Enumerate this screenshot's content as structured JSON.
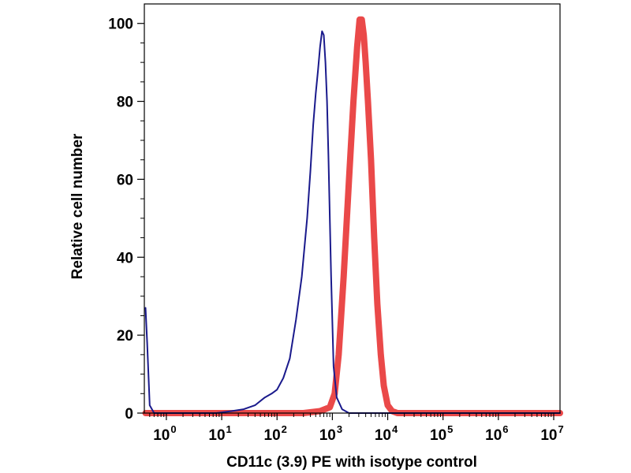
{
  "chart_data": {
    "type": "line",
    "title": "",
    "xlabel": "CD11c (3.9) PE with isotype control",
    "ylabel": "Relative cell number",
    "x_scale": "log",
    "xlim": [
      0.4,
      13000000
    ],
    "ylim": [
      0,
      105
    ],
    "x_ticks": [
      {
        "base": "10",
        "exp": "0",
        "value": 1
      },
      {
        "base": "10",
        "exp": "1",
        "value": 10
      },
      {
        "base": "10",
        "exp": "2",
        "value": 100
      },
      {
        "base": "10",
        "exp": "3",
        "value": 1000
      },
      {
        "base": "10",
        "exp": "4",
        "value": 10000
      },
      {
        "base": "10",
        "exp": "5",
        "value": 100000
      },
      {
        "base": "10",
        "exp": "6",
        "value": 1000000
      },
      {
        "base": "10",
        "exp": "7",
        "value": 10000000
      }
    ],
    "y_ticks": [
      "0",
      "20",
      "40",
      "60",
      "80",
      "100"
    ],
    "grid": false,
    "legend": "none",
    "series": [
      {
        "color": "#1a1a8c",
        "style": "thin",
        "x": [
          0.42,
          0.45,
          0.5,
          0.6,
          1,
          3,
          8,
          15,
          25,
          40,
          60,
          80,
          100,
          130,
          170,
          220,
          280,
          350,
          400,
          450,
          500,
          550,
          600,
          650,
          700,
          750,
          800,
          850,
          950,
          1050,
          1200,
          1500,
          2000,
          5000,
          100000,
          13000000
        ],
        "y": [
          27,
          18,
          2,
          0,
          0,
          0,
          0,
          0.5,
          1,
          2,
          4,
          5,
          6,
          9,
          14,
          24,
          35,
          50,
          62,
          74,
          82,
          88,
          94,
          98,
          97,
          90,
          80,
          66,
          35,
          12,
          4,
          1,
          0,
          0,
          0,
          0
        ]
      },
      {
        "color": "#e8393a",
        "style": "thick",
        "x": [
          0.42,
          100,
          300,
          600,
          900,
          1100,
          1300,
          1600,
          2000,
          2400,
          2800,
          3100,
          3400,
          3700,
          4000,
          4400,
          5000,
          5700,
          6500,
          7500,
          8500,
          10000,
          12000,
          15000,
          20000,
          13000000
        ],
        "y": [
          0,
          0,
          0,
          0.5,
          1.5,
          5,
          15,
          35,
          60,
          80,
          94,
          101,
          101,
          97,
          90,
          80,
          65,
          45,
          28,
          15,
          7,
          2,
          0.5,
          0,
          0,
          0
        ]
      }
    ]
  }
}
